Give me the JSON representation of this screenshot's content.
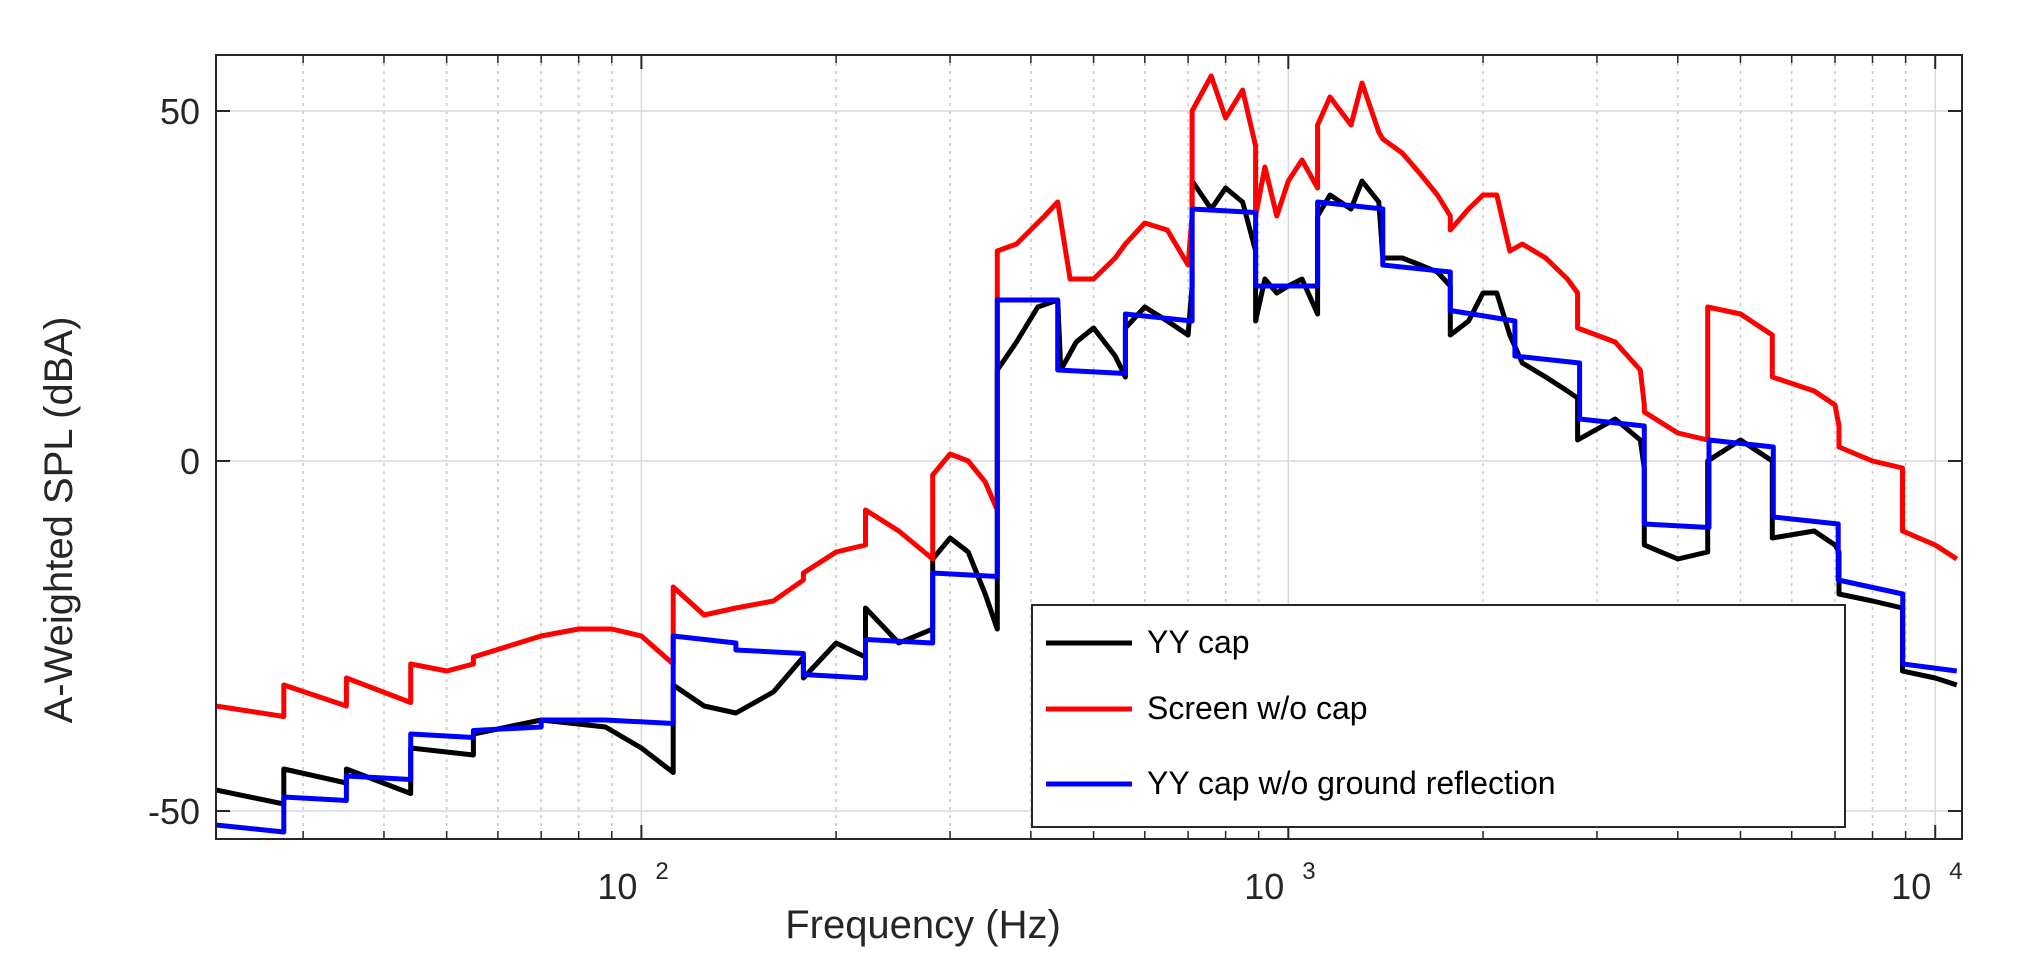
{
  "chart_data": {
    "type": "line",
    "title": "",
    "xlabel": "Frequency (Hz)",
    "ylabel": "A-Weighted SPL (dBA)",
    "xscale": "log",
    "xlim": [
      22,
      11000
    ],
    "ylim": [
      -54,
      58
    ],
    "x_ticks": [
      {
        "base": "10",
        "exp": "2",
        "value": 100
      },
      {
        "base": "10",
        "exp": "3",
        "value": 1000
      },
      {
        "base": "10",
        "exp": "4",
        "value": 10000
      }
    ],
    "y_ticks": [
      {
        "label": "50",
        "value": 50
      },
      {
        "label": "0",
        "value": 0
      },
      {
        "label": "-50",
        "value": -50
      }
    ],
    "grid": true,
    "legend_position": "bottom-right",
    "series": [
      {
        "name": "YY cap",
        "color": "#000000",
        "points": [
          [
            22,
            -47
          ],
          [
            28,
            -49
          ],
          [
            28,
            -44
          ],
          [
            35,
            -46
          ],
          [
            35,
            -44
          ],
          [
            44,
            -47.5
          ],
          [
            44,
            -41
          ],
          [
            55,
            -42
          ],
          [
            55,
            -39
          ],
          [
            70,
            -37
          ],
          [
            88,
            -38
          ],
          [
            100,
            -41
          ],
          [
            112,
            -44.5
          ],
          [
            112,
            -32
          ],
          [
            125,
            -35
          ],
          [
            140,
            -36
          ],
          [
            160,
            -33
          ],
          [
            178,
            -28
          ],
          [
            178,
            -31
          ],
          [
            200,
            -26
          ],
          [
            222,
            -28
          ],
          [
            222,
            -21
          ],
          [
            250,
            -26
          ],
          [
            282,
            -24
          ],
          [
            282,
            -14
          ],
          [
            300,
            -11
          ],
          [
            320,
            -13
          ],
          [
            340,
            -19
          ],
          [
            355,
            -24
          ],
          [
            355,
            13
          ],
          [
            380,
            17
          ],
          [
            410,
            22
          ],
          [
            440,
            23
          ],
          [
            445,
            13
          ],
          [
            470,
            17
          ],
          [
            500,
            19
          ],
          [
            540,
            15
          ],
          [
            560,
            12
          ],
          [
            560,
            19
          ],
          [
            600,
            22
          ],
          [
            650,
            20
          ],
          [
            700,
            18
          ],
          [
            710,
            25
          ],
          [
            710,
            40
          ],
          [
            760,
            36
          ],
          [
            800,
            39
          ],
          [
            850,
            37
          ],
          [
            890,
            30
          ],
          [
            890,
            20
          ],
          [
            920,
            26
          ],
          [
            960,
            24
          ],
          [
            1000,
            25
          ],
          [
            1050,
            26
          ],
          [
            1110,
            21
          ],
          [
            1110,
            35
          ],
          [
            1160,
            38
          ],
          [
            1250,
            36
          ],
          [
            1300,
            40
          ],
          [
            1380,
            37
          ],
          [
            1400,
            29
          ],
          [
            1500,
            29
          ],
          [
            1600,
            28
          ],
          [
            1700,
            27
          ],
          [
            1780,
            25
          ],
          [
            1780,
            18
          ],
          [
            1900,
            20
          ],
          [
            2000,
            24
          ],
          [
            2100,
            24
          ],
          [
            2200,
            18
          ],
          [
            2300,
            14
          ],
          [
            2500,
            12
          ],
          [
            2700,
            10
          ],
          [
            2800,
            9
          ],
          [
            2800,
            3
          ],
          [
            3200,
            6
          ],
          [
            3500,
            3
          ],
          [
            3550,
            -1
          ],
          [
            3550,
            -12
          ],
          [
            4000,
            -14
          ],
          [
            4450,
            -13
          ],
          [
            4450,
            0
          ],
          [
            5000,
            3
          ],
          [
            5600,
            0
          ],
          [
            5600,
            -11
          ],
          [
            6500,
            -10
          ],
          [
            7000,
            -12
          ],
          [
            7100,
            -13
          ],
          [
            7100,
            -19
          ],
          [
            8000,
            -20
          ],
          [
            8900,
            -21
          ],
          [
            8900,
            -30
          ],
          [
            10000,
            -31
          ],
          [
            10800,
            -32
          ]
        ]
      },
      {
        "name": "Screen w/o cap",
        "color": "#ff0000",
        "points": [
          [
            22,
            -35
          ],
          [
            28,
            -36.5
          ],
          [
            28,
            -32
          ],
          [
            35,
            -35
          ],
          [
            35,
            -31
          ],
          [
            44,
            -34.5
          ],
          [
            44,
            -29
          ],
          [
            50,
            -30
          ],
          [
            55,
            -29
          ],
          [
            55,
            -28
          ],
          [
            70,
            -25
          ],
          [
            80,
            -24
          ],
          [
            90,
            -24
          ],
          [
            100,
            -25
          ],
          [
            112,
            -29
          ],
          [
            112,
            -18
          ],
          [
            125,
            -22
          ],
          [
            140,
            -21
          ],
          [
            160,
            -20
          ],
          [
            178,
            -17
          ],
          [
            178,
            -16
          ],
          [
            200,
            -13
          ],
          [
            222,
            -12
          ],
          [
            222,
            -7
          ],
          [
            250,
            -10
          ],
          [
            282,
            -14
          ],
          [
            282,
            -2
          ],
          [
            300,
            1
          ],
          [
            320,
            0
          ],
          [
            340,
            -3
          ],
          [
            355,
            -7
          ],
          [
            355,
            30
          ],
          [
            380,
            31
          ],
          [
            420,
            35
          ],
          [
            440,
            37
          ],
          [
            460,
            26
          ],
          [
            500,
            26
          ],
          [
            540,
            29
          ],
          [
            560,
            31
          ],
          [
            600,
            34
          ],
          [
            650,
            33
          ],
          [
            700,
            28
          ],
          [
            710,
            35
          ],
          [
            710,
            50
          ],
          [
            760,
            55
          ],
          [
            800,
            49
          ],
          [
            850,
            53
          ],
          [
            890,
            45
          ],
          [
            890,
            35
          ],
          [
            920,
            42
          ],
          [
            960,
            35
          ],
          [
            1000,
            40
          ],
          [
            1050,
            43
          ],
          [
            1110,
            39
          ],
          [
            1110,
            48
          ],
          [
            1160,
            52
          ],
          [
            1250,
            48
          ],
          [
            1300,
            54
          ],
          [
            1380,
            47
          ],
          [
            1400,
            46
          ],
          [
            1500,
            44
          ],
          [
            1600,
            41
          ],
          [
            1700,
            38
          ],
          [
            1780,
            35
          ],
          [
            1780,
            33
          ],
          [
            1900,
            36
          ],
          [
            2000,
            38
          ],
          [
            2100,
            38
          ],
          [
            2200,
            30
          ],
          [
            2300,
            31
          ],
          [
            2500,
            29
          ],
          [
            2700,
            26
          ],
          [
            2800,
            24
          ],
          [
            2800,
            19
          ],
          [
            3200,
            17
          ],
          [
            3500,
            13
          ],
          [
            3550,
            8
          ],
          [
            3550,
            7
          ],
          [
            4000,
            4
          ],
          [
            4450,
            3
          ],
          [
            4450,
            22
          ],
          [
            5000,
            21
          ],
          [
            5600,
            18
          ],
          [
            5600,
            12
          ],
          [
            6500,
            10
          ],
          [
            7000,
            8
          ],
          [
            7100,
            5
          ],
          [
            7100,
            2
          ],
          [
            8000,
            0
          ],
          [
            8900,
            -1
          ],
          [
            8900,
            -10
          ],
          [
            10000,
            -12
          ],
          [
            10800,
            -14
          ]
        ]
      },
      {
        "name": "YY cap w/o ground reflection",
        "color": "#0000ff",
        "points": [
          [
            22,
            -52
          ],
          [
            28,
            -53
          ],
          [
            28,
            -48
          ],
          [
            35,
            -48.5
          ],
          [
            35,
            -45
          ],
          [
            44,
            -45.5
          ],
          [
            44,
            -39
          ],
          [
            55,
            -39.5
          ],
          [
            55,
            -38.5
          ],
          [
            70,
            -38
          ],
          [
            70,
            -37
          ],
          [
            88,
            -37
          ],
          [
            88,
            -37
          ],
          [
            112,
            -37.5
          ],
          [
            112,
            -25
          ],
          [
            140,
            -26
          ],
          [
            140,
            -27
          ],
          [
            178,
            -27.5
          ],
          [
            178,
            -30.5
          ],
          [
            222,
            -31
          ],
          [
            222,
            -25.5
          ],
          [
            282,
            -26
          ],
          [
            282,
            -16
          ],
          [
            355,
            -16.5
          ],
          [
            355,
            23
          ],
          [
            440,
            23
          ],
          [
            440,
            13
          ],
          [
            560,
            12.5
          ],
          [
            560,
            21
          ],
          [
            710,
            20
          ],
          [
            710,
            36
          ],
          [
            890,
            35.5
          ],
          [
            890,
            25
          ],
          [
            1110,
            25
          ],
          [
            1110,
            37
          ],
          [
            1400,
            36
          ],
          [
            1400,
            28
          ],
          [
            1780,
            27
          ],
          [
            1780,
            21.5
          ],
          [
            2240,
            20
          ],
          [
            2240,
            15
          ],
          [
            2820,
            14
          ],
          [
            2820,
            6
          ],
          [
            3550,
            5
          ],
          [
            3550,
            -9
          ],
          [
            4470,
            -9.5
          ],
          [
            4470,
            3
          ],
          [
            5620,
            2
          ],
          [
            5620,
            -8
          ],
          [
            7080,
            -9
          ],
          [
            7080,
            -17
          ],
          [
            8910,
            -19
          ],
          [
            8910,
            -29
          ],
          [
            10800,
            -30
          ]
        ]
      }
    ]
  }
}
